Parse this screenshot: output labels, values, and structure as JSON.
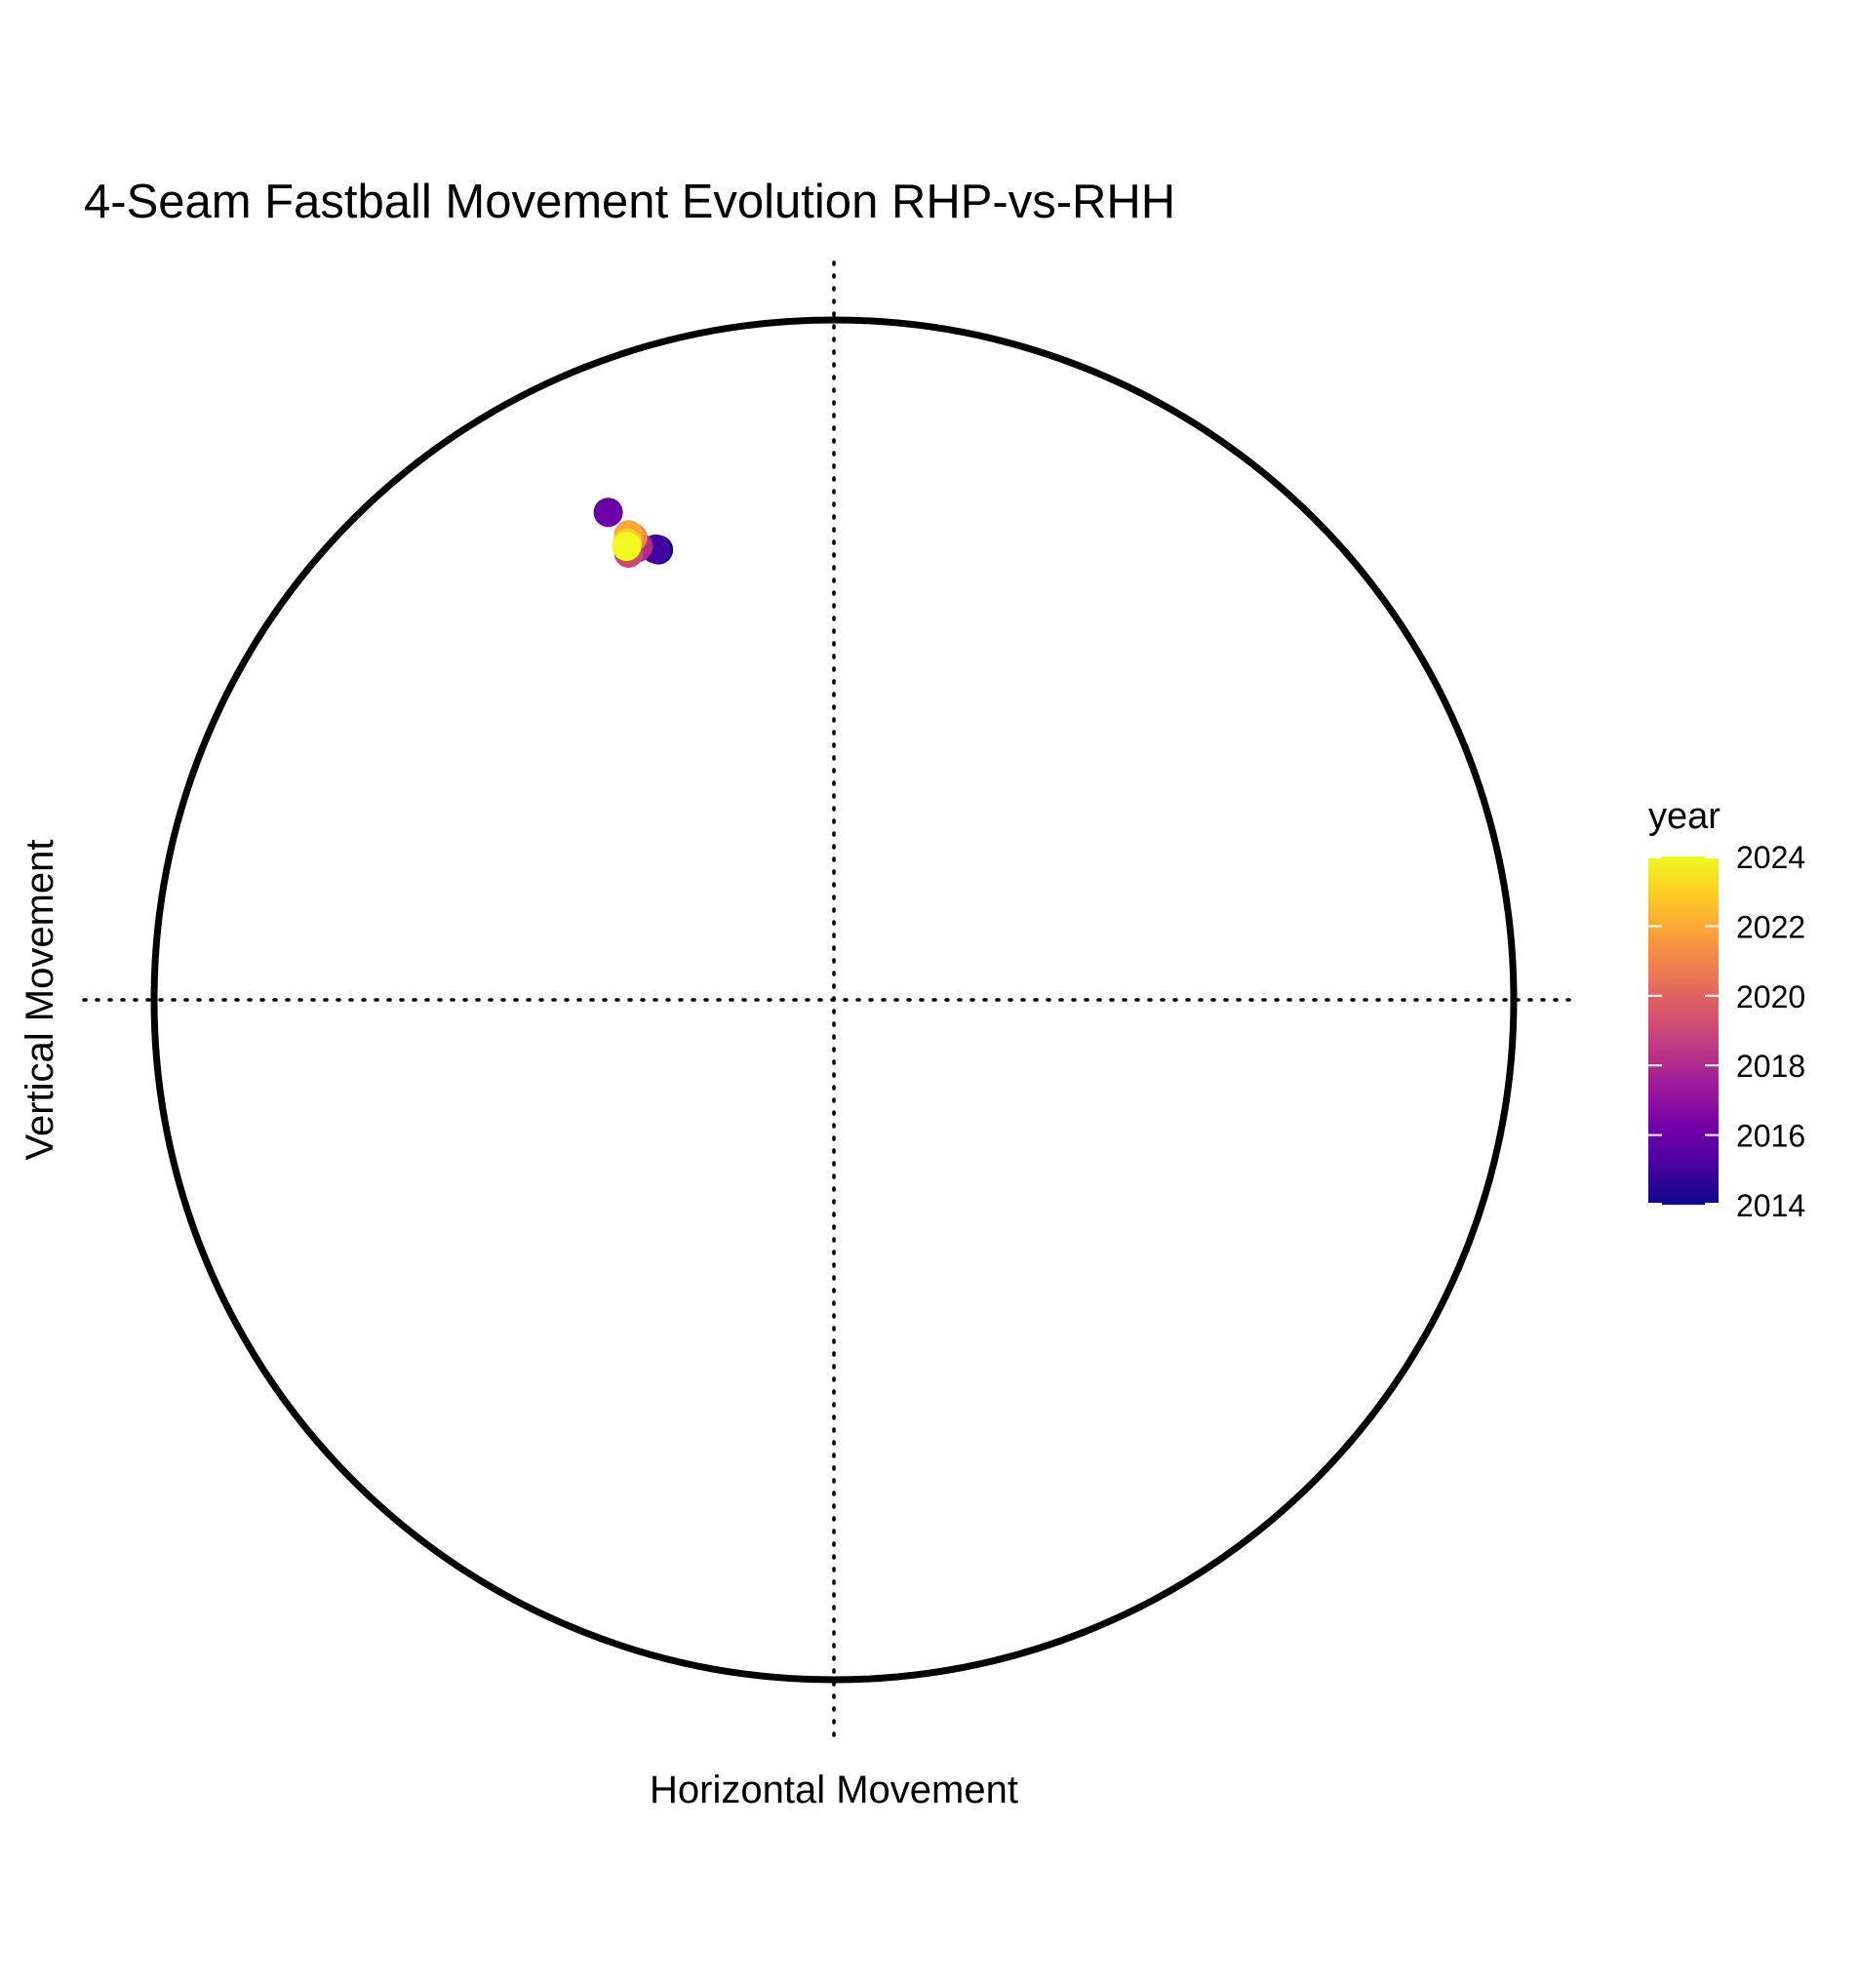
{
  "chart_data": {
    "type": "scatter",
    "title": "4-Seam Fastball Movement Evolution RHP-vs-RHH",
    "xlabel": "Horizontal Movement",
    "ylabel": "Vertical Movement",
    "xlim": [
      -1,
      1
    ],
    "ylim": [
      -1,
      1
    ],
    "grid": false,
    "reference_lines": "dotted lines at x = 0 and y = 0",
    "boundary": "unit circle",
    "color_by": "year",
    "colorscale": "plasma",
    "legend": {
      "title": "year",
      "position": "right",
      "ticks": [
        2014,
        2016,
        2018,
        2020,
        2022,
        2024
      ],
      "range": [
        2014,
        2024
      ],
      "colors": [
        "#0d0887",
        "#47039f",
        "#7301a8",
        "#9c179e",
        "#bd3786",
        "#d8576b",
        "#ed7953",
        "#fb9f3a",
        "#fdca26",
        "#f0f921"
      ]
    },
    "points": [
      {
        "year": 2014,
        "x": -0.258,
        "y": 0.662
      },
      {
        "year": 2015,
        "x": -0.262,
        "y": 0.663
      },
      {
        "year": 2016,
        "x": -0.332,
        "y": 0.717
      },
      {
        "year": 2017,
        "x": -0.29,
        "y": 0.665
      },
      {
        "year": 2018,
        "x": -0.288,
        "y": 0.667
      },
      {
        "year": 2019,
        "x": -0.302,
        "y": 0.657
      },
      {
        "year": 2021,
        "x": -0.296,
        "y": 0.68
      },
      {
        "year": 2022,
        "x": -0.302,
        "y": 0.684
      },
      {
        "year": 2023,
        "x": -0.304,
        "y": 0.672
      },
      {
        "year": 2024,
        "x": -0.305,
        "y": 0.667
      }
    ]
  }
}
